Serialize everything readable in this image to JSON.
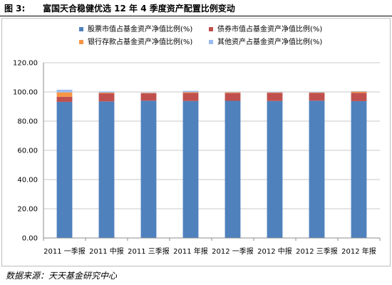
{
  "figure": {
    "label": "图 3:",
    "title": "富国天合稳健优选 12 年 4 季度资产配置比例变动",
    "source": "数据来源：天天基金研究中心"
  },
  "chart_data": {
    "type": "bar",
    "stacked": true,
    "categories": [
      "2011 一季报",
      "2011 中报",
      "2011 三季报",
      "2011 年报",
      "2012 一季报",
      "2012 中报",
      "2012 三季报",
      "2012 年报"
    ],
    "series": [
      {
        "name": "股票市值占基金资产净值比例(%)",
        "color": "#4f81bd",
        "values": [
          93.2,
          93.5,
          94.0,
          93.8,
          93.9,
          93.8,
          94.0,
          93.7
        ]
      },
      {
        "name": "债券市值占基金资产净值比例(%)",
        "color": "#c0504d",
        "values": [
          3.5,
          5.5,
          5.0,
          5.5,
          5.3,
          5.5,
          5.3,
          5.7
        ]
      },
      {
        "name": "银行存款占基金资产净值比例(%)",
        "color": "#f79646",
        "values": [
          3.0,
          0.5,
          0.3,
          0.5,
          0.5,
          0.3,
          0.3,
          0.8
        ]
      },
      {
        "name": "其他资产占基金资产净值比例(%)",
        "color": "#9bbbf0",
        "values": [
          1.8,
          0.8,
          0.3,
          0.9,
          0.3,
          0.3,
          0.3,
          0.3
        ]
      }
    ],
    "ylim": [
      0,
      120
    ],
    "yticks": [
      "0.00",
      "20.00",
      "40.00",
      "60.00",
      "80.00",
      "100.00",
      "120.00"
    ],
    "ytick_values": [
      0,
      20,
      40,
      60,
      80,
      100,
      120
    ],
    "grid": true,
    "legend_position": "top"
  }
}
